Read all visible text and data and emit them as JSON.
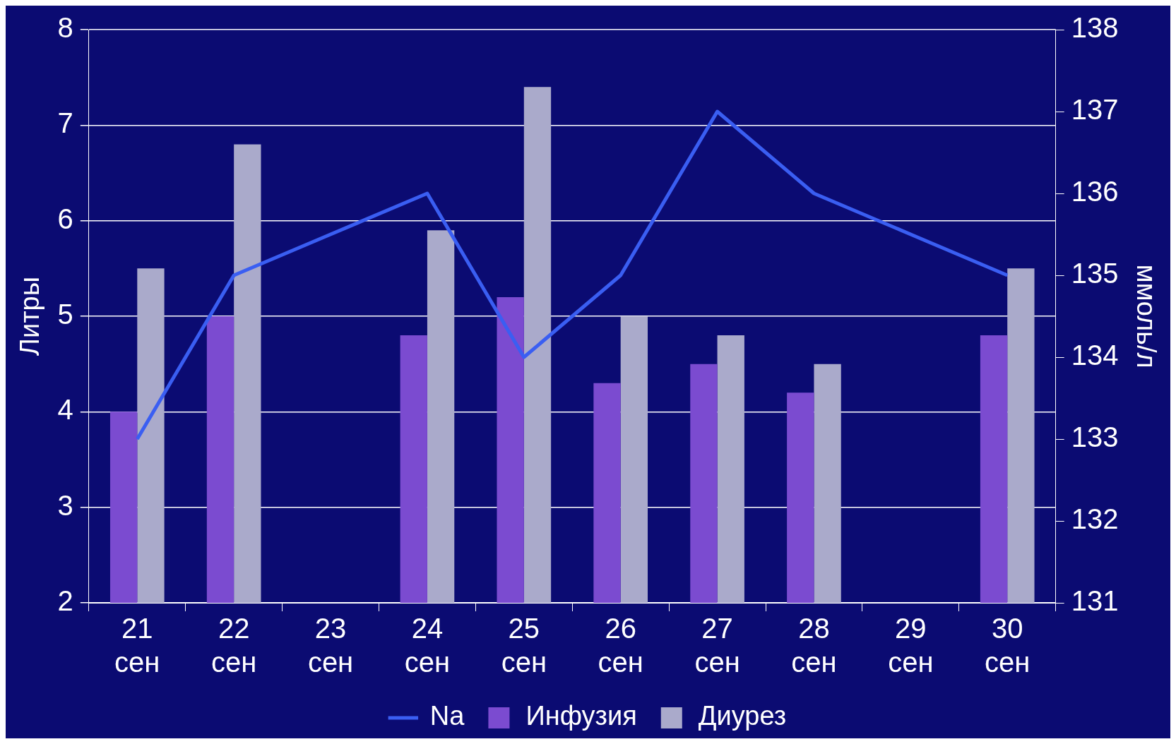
{
  "chart_data": {
    "type": "bar",
    "ylabel": "Литры",
    "y2label": "ммоль/л",
    "categories": [
      "21 сен",
      "22 сен",
      "23 сен",
      "24 сен",
      "25 сен",
      "26 сен",
      "27 сен",
      "28 сен",
      "29 сен",
      "30 сен"
    ],
    "series": [
      {
        "name": "Инфузия",
        "color": "#7b4bd0",
        "values": [
          4.0,
          5.0,
          null,
          4.8,
          5.2,
          4.3,
          4.5,
          4.2,
          null,
          4.8
        ]
      },
      {
        "name": "Диурез",
        "color": "#aaaacb",
        "values": [
          5.5,
          6.8,
          null,
          5.9,
          7.4,
          5.0,
          4.8,
          4.5,
          null,
          5.5
        ]
      },
      {
        "name": "Na",
        "type": "line",
        "axis": "y2",
        "color": "#3a5ef2",
        "values": [
          133,
          135,
          135.5,
          136,
          134,
          135,
          137,
          136,
          135.5,
          135
        ]
      }
    ],
    "ylim": [
      2,
      8
    ],
    "yticks": [
      2,
      3,
      4,
      5,
      6,
      7,
      8
    ],
    "y2lim": [
      131,
      138
    ],
    "y2ticks": [
      131,
      132,
      133,
      134,
      135,
      136,
      137,
      138
    ],
    "grid": "y",
    "legend": "bottom"
  }
}
